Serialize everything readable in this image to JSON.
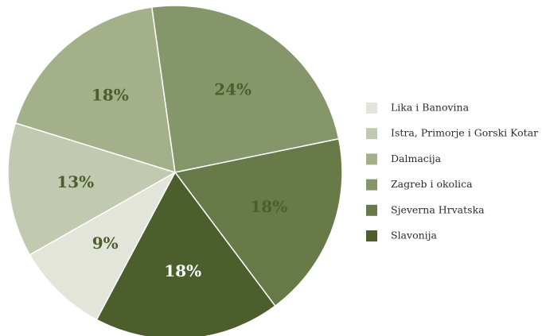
{
  "chart_data": {
    "type": "pie",
    "title": "",
    "categories": [
      "Lika i Banovina",
      "Istra, Primorje i Gorski Kotar",
      "Dalmacija",
      "Zagreb i okolica",
      "Sjeverna Hrvatska",
      "Slavonija"
    ],
    "values": [
      9,
      13,
      18,
      24,
      18,
      18
    ],
    "labels": [
      "9%",
      "13%",
      "18%",
      "24%",
      "18%",
      "18%"
    ],
    "colors": [
      "#e3e5da",
      "#c2c9b1",
      "#a3b08a",
      "#85976a",
      "#677a48",
      "#4b5e2b"
    ],
    "label_colors": [
      "#4b5e2b",
      "#4b5e2b",
      "#4b5e2b",
      "#4b5e2b",
      "#4b5e2b",
      "#ffffff"
    ],
    "legend": {
      "position": "right",
      "order": [
        0,
        1,
        2,
        3,
        4,
        5
      ]
    }
  }
}
